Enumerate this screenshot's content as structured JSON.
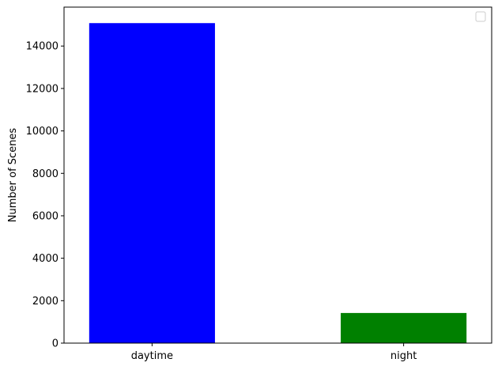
{
  "chart_data": {
    "type": "bar",
    "categories": [
      "daytime",
      "night"
    ],
    "values": [
      15080,
      1420
    ],
    "colors": [
      "#0000ff",
      "#008000"
    ],
    "title": "",
    "xlabel": "",
    "ylabel": "Number of Scenes",
    "ylim": [
      0,
      15834
    ],
    "yticks": [
      0,
      2000,
      4000,
      6000,
      8000,
      10000,
      12000,
      14000
    ],
    "ytick_labels": [
      "0",
      "2000",
      "4000",
      "6000",
      "8000",
      "10000",
      "12000",
      "14000"
    ],
    "grid": false,
    "legend": {
      "placement": "top-right",
      "entries": []
    }
  }
}
